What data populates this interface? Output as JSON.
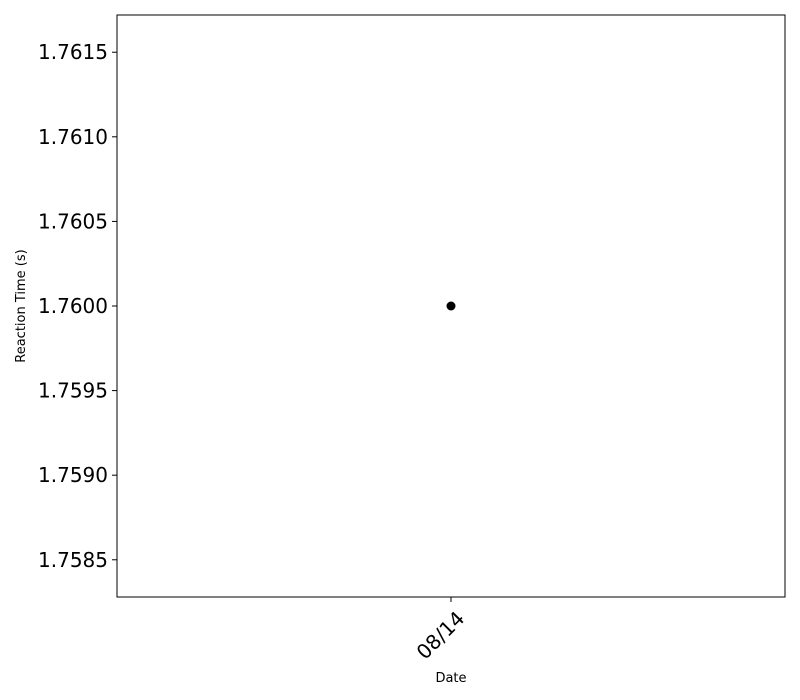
{
  "chart_data": {
    "type": "scatter",
    "title": "",
    "xlabel": "Date",
    "ylabel": "Reaction Time (s)",
    "x_ticks": [
      "08/14"
    ],
    "y_ticks": [
      "1.7585",
      "1.7590",
      "1.7595",
      "1.7600",
      "1.7605",
      "1.7610",
      "1.7615"
    ],
    "y_tick_values": [
      1.7585,
      1.759,
      1.7595,
      1.76,
      1.7605,
      1.761,
      1.7615
    ],
    "ylim": [
      1.75828,
      1.76172
    ],
    "grid": false,
    "point_color": "#000000",
    "series": [
      {
        "x": [
          "08/14"
        ],
        "y": [
          1.76
        ]
      }
    ]
  }
}
